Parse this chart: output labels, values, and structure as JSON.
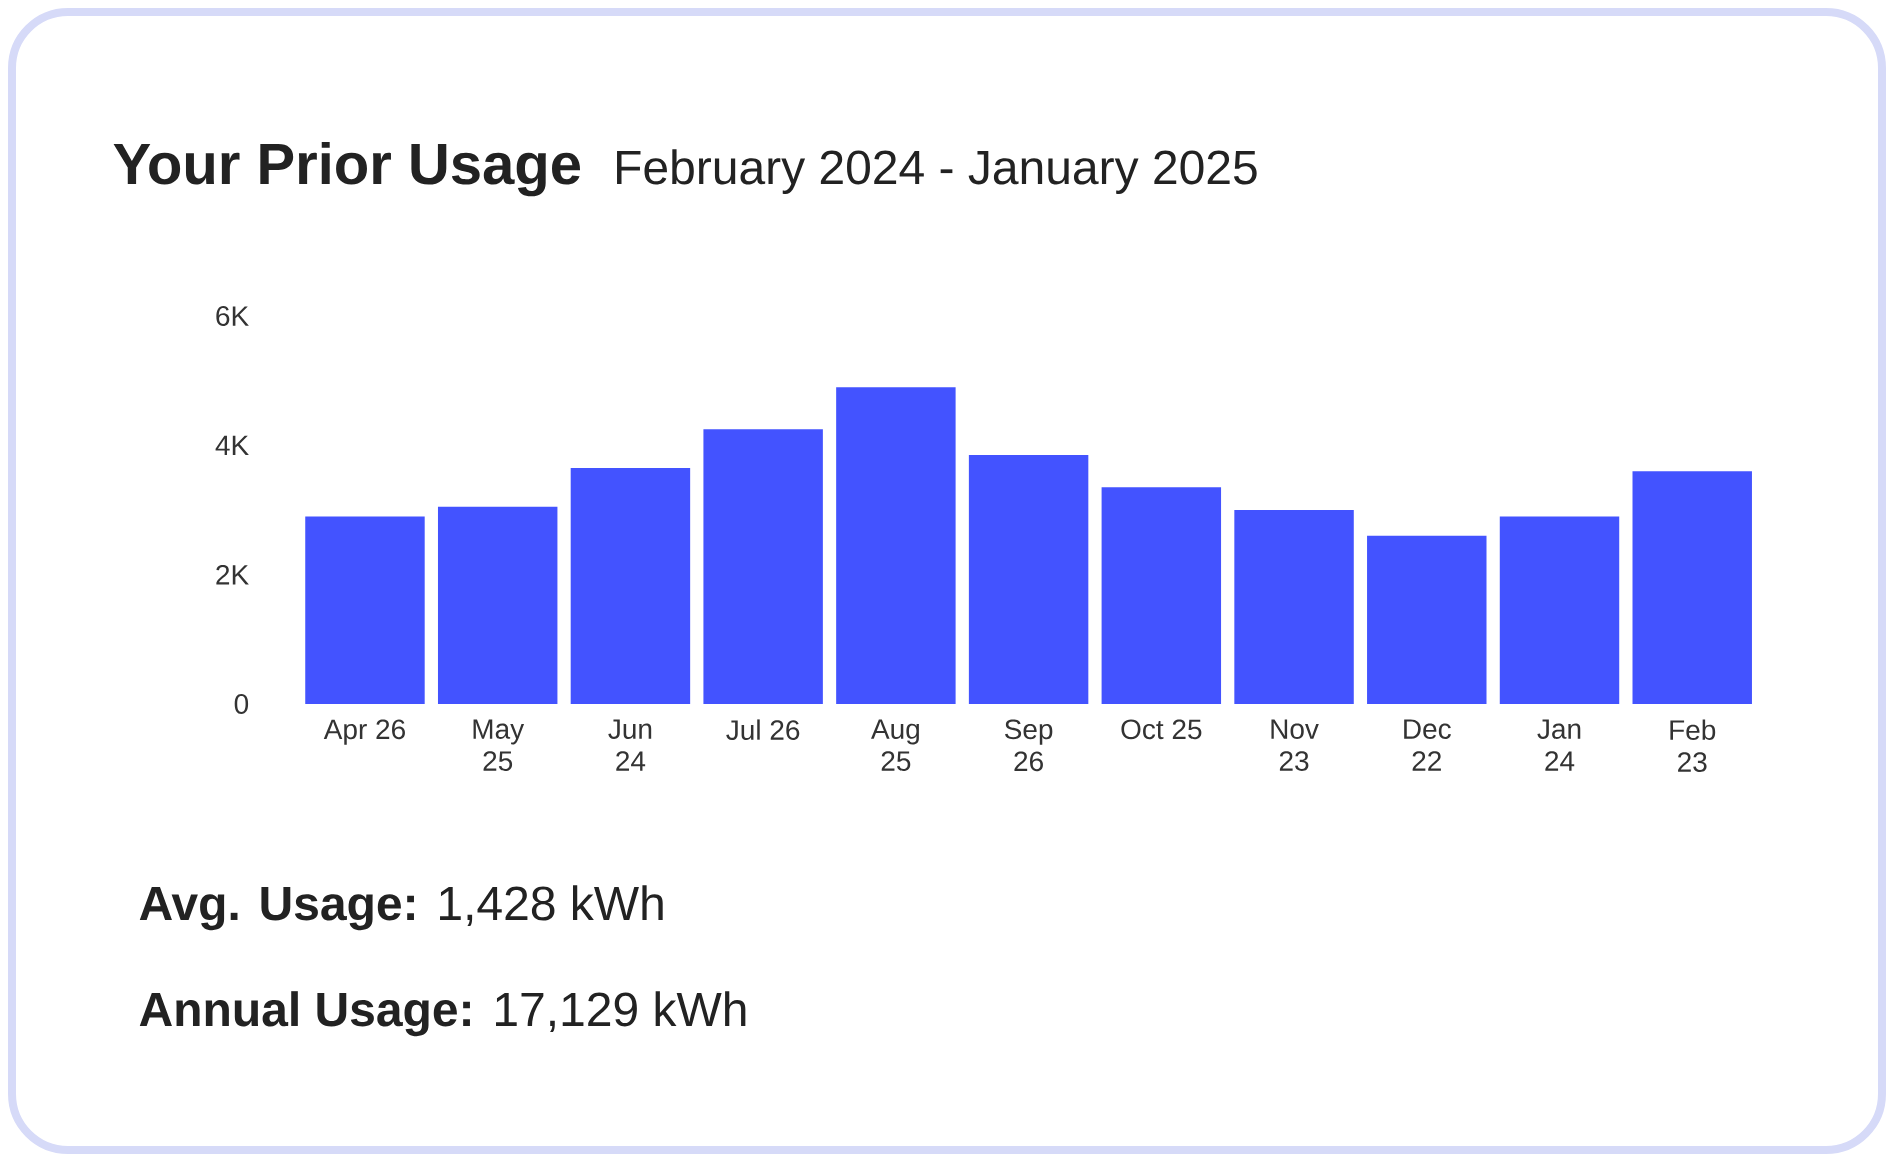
{
  "chart_data": {
    "type": "bar",
    "title": "Your Prior Usage",
    "subtitle": "February 2024 - January 2025",
    "categories": [
      "Apr 26",
      "May\n25",
      "Jun\n24",
      "Jul 26",
      "Aug\n25",
      "Sep\n26",
      "Oct 25",
      "Nov\n23",
      "Dec\n22",
      "Jan\n24",
      "Feb\n23"
    ],
    "values": [
      2900,
      3050,
      3650,
      4250,
      4900,
      3850,
      3350,
      3000,
      2600,
      2900,
      3600
    ],
    "color": "#4353ff",
    "ylim": [
      0,
      6000
    ],
    "yticks": [
      0,
      {
        "value": 2000,
        "label": "2K"
      },
      {
        "value": 4000,
        "label": "4K"
      },
      {
        "value": 6000,
        "label": "6K"
      }
    ],
    "annotations": [
      "**Avg. Usage:** 1,428 kWh",
      "**Annual Usage:** 17,129 kWh"
    ]
  }
}
